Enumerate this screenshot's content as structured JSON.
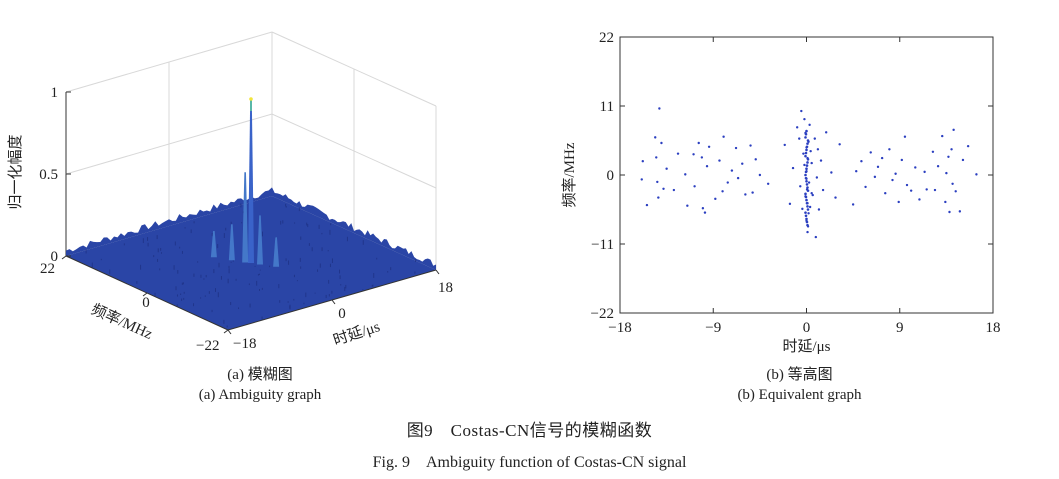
{
  "charts": {
    "ambiguity": {
      "zlabel": "归一化幅度",
      "ylabel": "频率/MHz",
      "xlabel": "时延/μs",
      "z_ticks": [
        "0",
        "0.5",
        "1"
      ],
      "y_ticks": [
        "22",
        "0",
        "−22"
      ],
      "x_ticks": [
        "−18",
        "0",
        "18"
      ],
      "caption_cn": "(a) 模糊图",
      "caption_en": "(a) Ambiguity graph"
    },
    "contour": {
      "xlabel": "时延/μs",
      "ylabel": "频率/MHz",
      "x_ticks": [
        "−18",
        "−9",
        "0",
        "9",
        "18"
      ],
      "y_ticks": [
        "22",
        "11",
        "0",
        "−11",
        "−22"
      ],
      "caption_cn": "(b) 等高图",
      "caption_en": "(b) Equivalent graph"
    }
  },
  "figure": {
    "caption_cn": "图9　Costas-CN信号的模糊函数",
    "caption_en": "Fig. 9　Ambiguity function of Costas-CN signal"
  },
  "colors": {
    "surface": "#2a45a6",
    "surface_dark": "#1d2f80",
    "peak": "#f2e53b",
    "dot": "#2b3fc0",
    "axis": "#333333",
    "grid": "#d8d8d8"
  },
  "chart_data": [
    {
      "type": "surface",
      "title": "",
      "xlabel": "时延/μs",
      "ylabel": "频率/MHz",
      "zlabel": "归一化幅度",
      "xlim": [
        -18,
        18
      ],
      "ylim": [
        -22,
        22
      ],
      "zlim": [
        0,
        1
      ],
      "peaks": [
        {
          "x": 0,
          "y": 0,
          "z": 1.0
        },
        {
          "x": -0.5,
          "y": 0.8,
          "z": 0.55
        },
        {
          "x": 0.6,
          "y": -1.5,
          "z": 0.3
        },
        {
          "x": -1.4,
          "y": 3,
          "z": 0.22
        },
        {
          "x": 1.8,
          "y": -4,
          "z": 0.18
        },
        {
          "x": -2.6,
          "y": 6,
          "z": 0.16
        }
      ],
      "floor_level": 0.05
    },
    {
      "type": "scatter",
      "title": "",
      "xlabel": "时延/μs",
      "ylabel": "频率/MHz",
      "xlim": [
        -18,
        18
      ],
      "ylim": [
        -22,
        22
      ],
      "x_ticks": [
        -18,
        -9,
        0,
        9,
        18
      ],
      "y_ticks": [
        -22,
        -11,
        0,
        11,
        22
      ],
      "points": [
        [
          -15.8,
          2.2
        ],
        [
          -15.9,
          -0.7
        ],
        [
          -15.4,
          -4.8
        ],
        [
          -14.6,
          6.0
        ],
        [
          -14.5,
          2.8
        ],
        [
          -14.4,
          -1.1
        ],
        [
          -14.3,
          -3.6
        ],
        [
          -14.2,
          10.6
        ],
        [
          -14.0,
          5.1
        ],
        [
          -13.8,
          -2.2
        ],
        [
          -13.5,
          1.0
        ],
        [
          -12.8,
          -2.4
        ],
        [
          -12.4,
          3.4
        ],
        [
          -11.7,
          0.1
        ],
        [
          -11.5,
          -4.9
        ],
        [
          -10.9,
          3.3
        ],
        [
          -10.8,
          -1.8
        ],
        [
          -10.4,
          5.1
        ],
        [
          -10.1,
          2.8
        ],
        [
          -10.0,
          -5.3
        ],
        [
          -9.8,
          -6.0
        ],
        [
          -9.6,
          1.4
        ],
        [
          -9.4,
          4.5
        ],
        [
          -8.8,
          -3.8
        ],
        [
          -8.4,
          2.3
        ],
        [
          -8.1,
          -2.6
        ],
        [
          -8.0,
          6.1
        ],
        [
          -7.6,
          -1.2
        ],
        [
          -7.2,
          0.7
        ],
        [
          -6.8,
          4.3
        ],
        [
          -6.6,
          -0.5
        ],
        [
          -6.2,
          1.8
        ],
        [
          -5.9,
          -3.1
        ],
        [
          -5.4,
          4.7
        ],
        [
          -5.2,
          -2.8
        ],
        [
          -4.9,
          2.5
        ],
        [
          -4.5,
          0.0
        ],
        [
          -3.7,
          -1.4
        ],
        [
          -2.1,
          4.8
        ],
        [
          -1.6,
          -4.6
        ],
        [
          -1.3,
          1.1
        ],
        [
          -0.9,
          7.6
        ],
        [
          -0.7,
          5.8
        ],
        [
          -0.6,
          -1.8
        ],
        [
          -0.5,
          10.2
        ],
        [
          -0.4,
          -5.4
        ],
        [
          -0.3,
          3.4
        ],
        [
          -0.2,
          8.9
        ],
        [
          -0.2,
          1.6
        ],
        [
          -0.1,
          -3.4
        ],
        [
          -0.1,
          6.7
        ],
        [
          0.0,
          -7.3
        ],
        [
          0.0,
          0.6
        ],
        [
          0.0,
          4.4
        ],
        [
          0.0,
          -0.6
        ],
        [
          0.05,
          -2.3
        ],
        [
          0.1,
          -9.1
        ],
        [
          0.1,
          2.7
        ],
        [
          0.1,
          -4.5
        ],
        [
          0.15,
          -8.2
        ],
        [
          0.2,
          5.3
        ],
        [
          0.2,
          -6.1
        ],
        [
          0.25,
          -1.2
        ],
        [
          0.3,
          8.0
        ],
        [
          0.35,
          -5.1
        ],
        [
          0.4,
          3.8
        ],
        [
          0.5,
          -2.9
        ],
        [
          0.5,
          1.9
        ],
        [
          0.6,
          -3.2
        ],
        [
          0.8,
          5.8
        ],
        [
          0.9,
          -9.9
        ],
        [
          1.0,
          -0.4
        ],
        [
          1.1,
          4.1
        ],
        [
          1.2,
          -5.5
        ],
        [
          1.4,
          2.3
        ],
        [
          1.6,
          -2.4
        ],
        [
          1.9,
          6.8
        ],
        [
          2.4,
          0.4
        ],
        [
          2.8,
          -3.6
        ],
        [
          3.2,
          4.9
        ],
        [
          4.5,
          -4.7
        ],
        [
          4.8,
          0.6
        ],
        [
          5.3,
          2.2
        ],
        [
          5.7,
          -1.9
        ],
        [
          6.2,
          3.6
        ],
        [
          6.6,
          -0.3
        ],
        [
          6.9,
          1.3
        ],
        [
          7.3,
          2.7
        ],
        [
          7.6,
          -2.9
        ],
        [
          8.0,
          4.1
        ],
        [
          8.3,
          -0.8
        ],
        [
          8.6,
          0.2
        ],
        [
          8.9,
          -4.3
        ],
        [
          9.2,
          2.4
        ],
        [
          9.5,
          6.1
        ],
        [
          9.7,
          -1.6
        ],
        [
          10.1,
          -2.5
        ],
        [
          10.5,
          1.2
        ],
        [
          10.9,
          -3.9
        ],
        [
          11.4,
          0.5
        ],
        [
          11.6,
          -2.3
        ],
        [
          12.2,
          3.7
        ],
        [
          12.4,
          -2.4
        ],
        [
          12.7,
          1.4
        ],
        [
          13.1,
          6.2
        ],
        [
          13.4,
          -4.3
        ],
        [
          13.5,
          0.3
        ],
        [
          13.7,
          2.9
        ],
        [
          13.8,
          -5.9
        ],
        [
          14.0,
          4.1
        ],
        [
          14.1,
          -1.4
        ],
        [
          14.2,
          7.2
        ],
        [
          14.4,
          -2.6
        ],
        [
          14.8,
          -5.8
        ],
        [
          15.1,
          2.4
        ],
        [
          15.6,
          4.6
        ],
        [
          16.4,
          0.1
        ]
      ]
    }
  ]
}
